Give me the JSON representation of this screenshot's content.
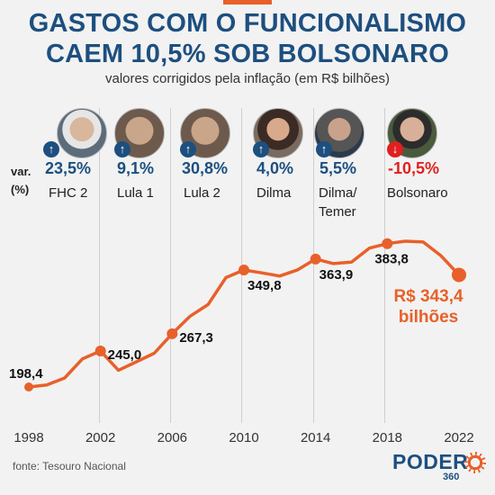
{
  "header": {
    "title_line1": "GASTOS COM O FUNCIONALISMO",
    "title_line2": "CAEM 10,5% SOB BOLSONARO",
    "subtitle": "valores corrigidos pela inflação (em R$ bilhões)"
  },
  "var_label_line1": "var.",
  "var_label_line2": "(%)",
  "periods": [
    {
      "pct": "23,5%",
      "name": "FHC 2",
      "direction": "up",
      "icon": "arrow-up-icon"
    },
    {
      "pct": "9,1%",
      "name": "Lula 1",
      "direction": "up",
      "icon": "arrow-up-icon"
    },
    {
      "pct": "30,8%",
      "name": "Lula 2",
      "direction": "up",
      "icon": "arrow-up-icon"
    },
    {
      "pct": "4,0%",
      "name": "Dilma",
      "direction": "up",
      "icon": "arrow-up-icon"
    },
    {
      "pct": "5,5%",
      "name": "Dilma/",
      "name2": "Temer",
      "direction": "up",
      "icon": "arrow-up-icon"
    },
    {
      "pct": "-10,5%",
      "name": "Bolsonaro",
      "direction": "down",
      "icon": "arrow-down-icon"
    }
  ],
  "colors": {
    "line": "#e8602a",
    "title": "#1d4f7f",
    "negative": "#e02020"
  },
  "chart_data": {
    "type": "line",
    "x": [
      1998,
      1999,
      2000,
      2001,
      2002,
      2003,
      2004,
      2005,
      2006,
      2007,
      2008,
      2009,
      2010,
      2011,
      2012,
      2013,
      2014,
      2015,
      2016,
      2017,
      2018,
      2019,
      2020,
      2021,
      2022
    ],
    "y": [
      198.4,
      201,
      210,
      235,
      245.0,
      220,
      231,
      242,
      267.3,
      290,
      305,
      340,
      349.8,
      346,
      342,
      350,
      363.9,
      358,
      360,
      378,
      383.8,
      387,
      386,
      368,
      343.4
    ],
    "xticks": [
      "1998",
      "2002",
      "2006",
      "2010",
      "2014",
      "2018",
      "2022"
    ],
    "labels": [
      {
        "x": 1998,
        "text": "198,4"
      },
      {
        "x": 2002,
        "text": "245,0"
      },
      {
        "x": 2006,
        "text": "267,3"
      },
      {
        "x": 2010,
        "text": "349,8"
      },
      {
        "x": 2014,
        "text": "363,9"
      },
      {
        "x": 2018,
        "text": "383,8"
      }
    ],
    "final_label_line1": "R$ 343,4",
    "final_label_line2": "bilhões",
    "xlim": [
      1998,
      2022
    ],
    "ylim": [
      160,
      400
    ],
    "grid": false
  },
  "footer": {
    "source": "fonte: Tesouro Nacional",
    "logo": "PODER",
    "logo_sub": "360"
  }
}
